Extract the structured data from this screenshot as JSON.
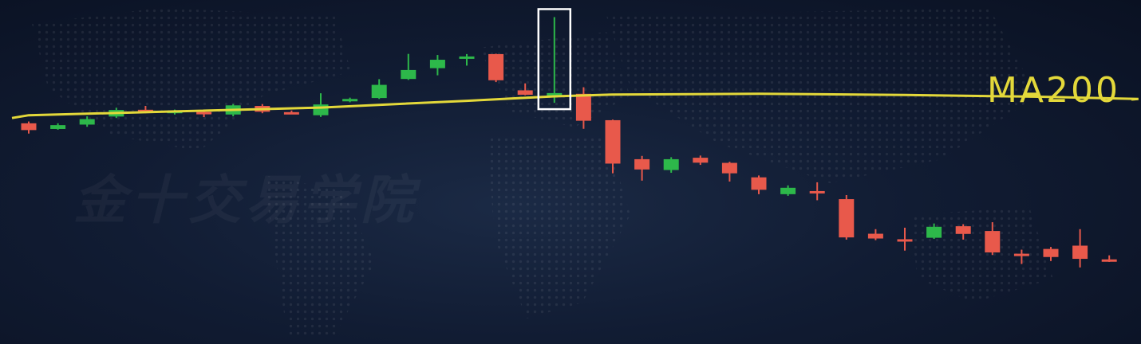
{
  "watermark": "金十交易学院",
  "colors": {
    "up": "#2db84a",
    "down": "#e8594b",
    "ma": "#e3d83a",
    "highlight": "#ffffff",
    "background": "#0f1a30"
  },
  "chart_data": {
    "type": "candlestick",
    "ma_label": "MA200",
    "grid": false,
    "candles": [
      {
        "o": 40.5,
        "c": 36.8,
        "h": 41.5,
        "l": 34.9
      },
      {
        "o": 37.4,
        "c": 39.5,
        "h": 40.5,
        "l": 37.0
      },
      {
        "o": 39.8,
        "c": 42.8,
        "h": 44.3,
        "l": 38.6
      },
      {
        "o": 44.2,
        "c": 47.8,
        "h": 49.0,
        "l": 43.4
      },
      {
        "o": 47.9,
        "c": 46.6,
        "h": 50.0,
        "l": 46.0
      },
      {
        "o": 46.8,
        "c": 47.3,
        "h": 48.0,
        "l": 45.3
      },
      {
        "o": 46.7,
        "c": 45.7,
        "h": 48.0,
        "l": 43.9
      },
      {
        "o": 45.3,
        "c": 50.3,
        "h": 51.0,
        "l": 44.3
      },
      {
        "o": 50.0,
        "c": 46.8,
        "h": 51.0,
        "l": 46.0
      },
      {
        "o": 46.6,
        "c": 46.2,
        "h": 47.5,
        "l": 45.7
      },
      {
        "o": 44.9,
        "c": 50.8,
        "h": 56.9,
        "l": 44.0
      },
      {
        "o": 52.7,
        "c": 53.8,
        "h": 54.5,
        "l": 52.0
      },
      {
        "o": 54.3,
        "c": 61.5,
        "h": 64.6,
        "l": 53.8
      },
      {
        "o": 64.7,
        "c": 69.6,
        "h": 78.4,
        "l": 64.2
      },
      {
        "o": 70.6,
        "c": 75.2,
        "h": 77.8,
        "l": 66.7
      },
      {
        "o": 76.3,
        "c": 77.0,
        "h": 78.3,
        "l": 72.0
      },
      {
        "o": 78.3,
        "c": 64.0,
        "h": 78.5,
        "l": 63.0
      },
      {
        "o": 58.5,
        "c": 56.1,
        "h": 62.3,
        "l": 55.8
      },
      {
        "o": 55.4,
        "c": 57.0,
        "h": 98.5,
        "l": 51.7
      },
      {
        "o": 56.6,
        "c": 41.9,
        "h": 60.2,
        "l": 37.5
      },
      {
        "o": 42.2,
        "c": 18.5,
        "h": 42.5,
        "l": 13.2
      },
      {
        "o": 20.9,
        "c": 15.3,
        "h": 22.7,
        "l": 9.2
      },
      {
        "o": 15.0,
        "c": 20.9,
        "h": 22.0,
        "l": 13.5
      },
      {
        "o": 21.7,
        "c": 19.0,
        "h": 22.9,
        "l": 17.8
      },
      {
        "o": 18.9,
        "c": 13.2,
        "h": 19.5,
        "l": 8.7
      },
      {
        "o": 11.0,
        "c": 4.2,
        "h": 12.0,
        "l": 1.8
      },
      {
        "o": 1.8,
        "c": 5.3,
        "h": 6.6,
        "l": 0.9
      },
      {
        "o": 3.5,
        "c": 3.0,
        "h": 8.3,
        "l": -1.5
      },
      {
        "o": -0.9,
        "c": -21.8,
        "h": 1.3,
        "l": -23.0
      },
      {
        "o": -19.8,
        "c": -22.4,
        "h": -17.3,
        "l": -23.3
      },
      {
        "o": -22.8,
        "c": -22.9,
        "h": -16.5,
        "l": -29.0
      },
      {
        "o": -22.0,
        "c": -16.0,
        "h": -14.2,
        "l": -22.6
      },
      {
        "o": -15.7,
        "c": -19.9,
        "h": -14.6,
        "l": -23.0
      },
      {
        "o": -18.3,
        "c": -30.0,
        "h": -13.5,
        "l": -31.4
      },
      {
        "o": -30.7,
        "c": -31.6,
        "h": -28.5,
        "l": -36.3
      },
      {
        "o": -28.1,
        "c": -32.5,
        "h": -27.0,
        "l": -34.7
      },
      {
        "o": -26.3,
        "c": -33.5,
        "h": -17.3,
        "l": -38.2
      },
      {
        "o": -33.8,
        "c": -34.2,
        "h": -31.6,
        "l": -35.2
      }
    ],
    "ma200": [
      {
        "x": 0,
        "y": 44.9
      },
      {
        "x": 5,
        "y": 47.0
      },
      {
        "x": 10,
        "y": 49.1
      },
      {
        "x": 15,
        "y": 52.8
      },
      {
        "x": 18,
        "y": 55.2
      },
      {
        "x": 20,
        "y": 56.2
      },
      {
        "x": 25,
        "y": 56.6
      },
      {
        "x": 30,
        "y": 56.0
      },
      {
        "x": 35,
        "y": 54.9
      },
      {
        "x": 38,
        "y": 53.8
      }
    ],
    "highlight_index": 18
  }
}
